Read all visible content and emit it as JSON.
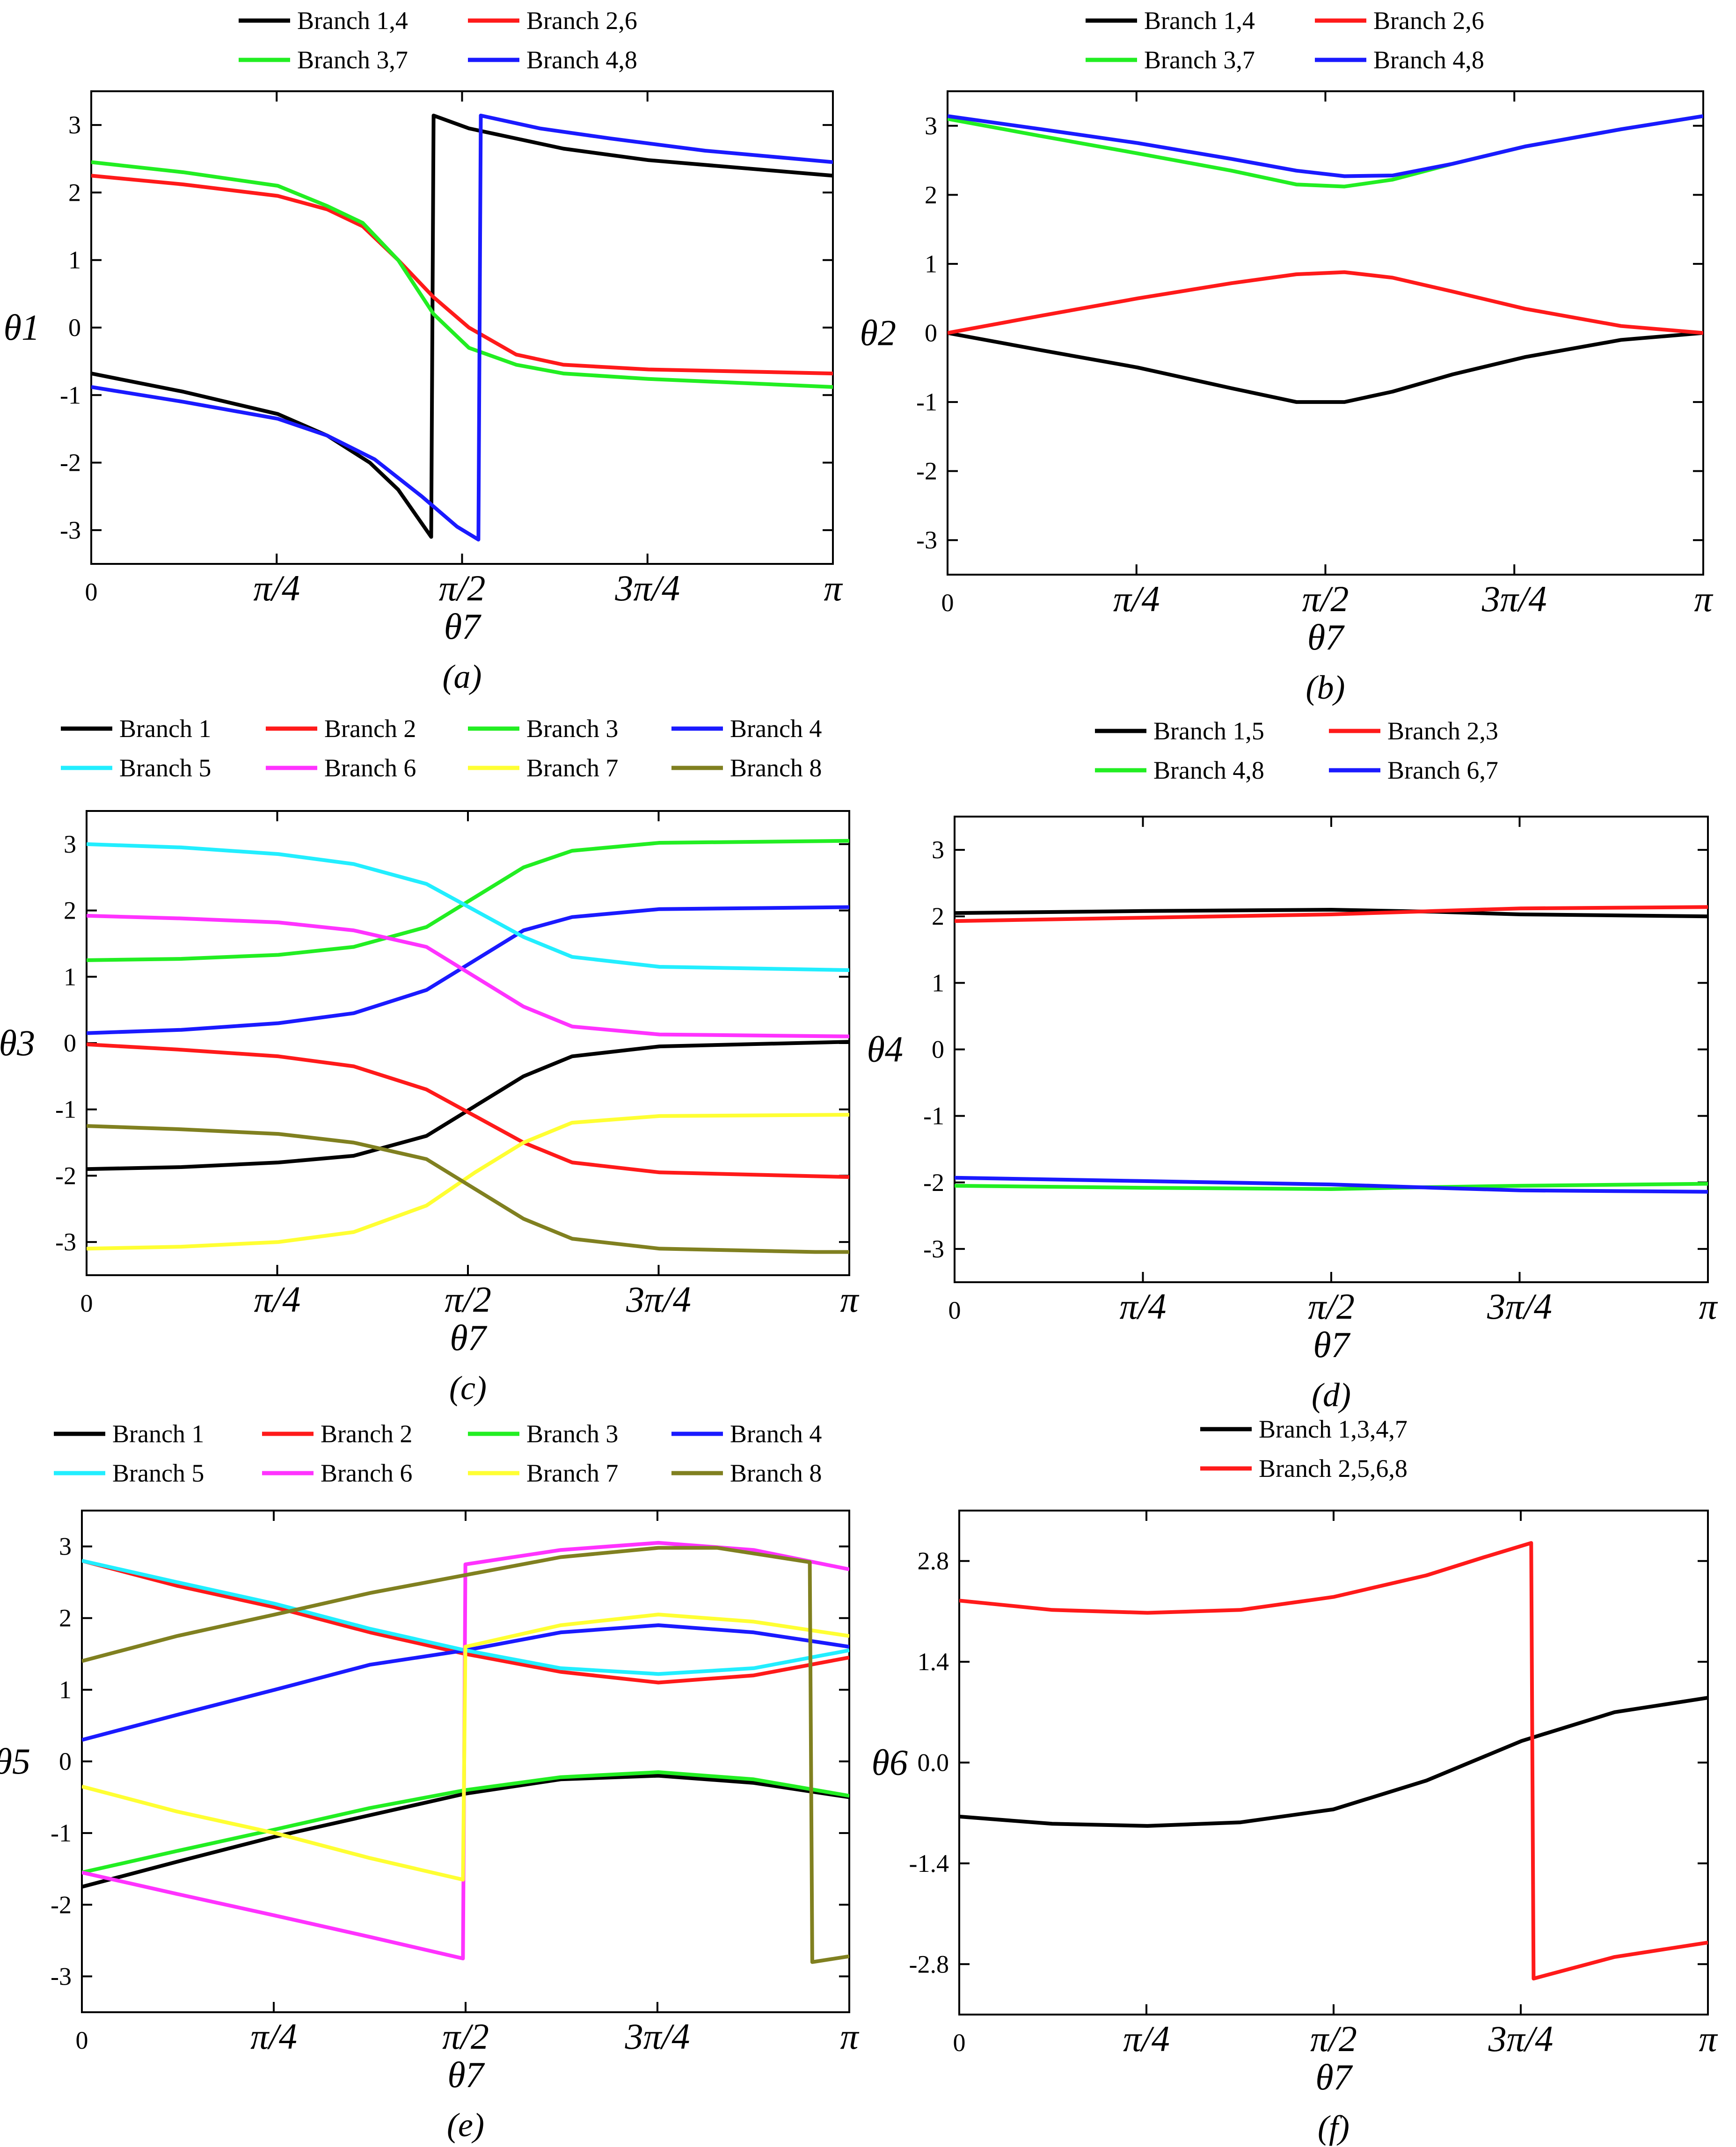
{
  "figure": {
    "colors": {
      "black": "#000000",
      "red": "#ff1a1a",
      "green": "#22ee22",
      "blue": "#1a1aff",
      "cyan": "#22eeff",
      "magenta": "#ff33ff",
      "yellow": "#ffff33",
      "olive": "#808020"
    }
  },
  "chart_data": [
    {
      "id": "a",
      "type": "line",
      "panel_label": "(a)",
      "ylabel": "θ1",
      "xlabel": "θ7",
      "xlim": [
        0,
        3.14159
      ],
      "ylim": [
        -3.5,
        3.5
      ],
      "yticks": [
        "-3",
        "-2",
        "-1",
        "0",
        "1",
        "2",
        "3"
      ],
      "xticks": [
        "0",
        "π/4",
        "π/2",
        "3π/4",
        "π"
      ],
      "series": [
        {
          "name": "Branch 1,4",
          "color": "#000000",
          "x": [
            0,
            0.39,
            0.79,
            1.0,
            1.18,
            1.3,
            1.4,
            1.44,
            1.45,
            1.6,
            1.8,
            2.0,
            2.36,
            3.14159
          ],
          "y": [
            -0.68,
            -0.95,
            -1.28,
            -1.6,
            -2.0,
            -2.4,
            -2.9,
            -3.1,
            3.14,
            2.95,
            2.8,
            2.65,
            2.48,
            2.25
          ]
        },
        {
          "name": "Branch 2,6",
          "color": "#ff1a1a",
          "x": [
            0,
            0.39,
            0.79,
            1.0,
            1.15,
            1.3,
            1.45,
            1.6,
            1.8,
            2.0,
            2.36,
            3.14159
          ],
          "y": [
            2.25,
            2.12,
            1.95,
            1.75,
            1.5,
            1.0,
            0.45,
            0.0,
            -0.4,
            -0.55,
            -0.62,
            -0.68
          ]
        },
        {
          "name": "Branch 3,7",
          "color": "#22ee22",
          "x": [
            0,
            0.39,
            0.79,
            1.0,
            1.15,
            1.3,
            1.45,
            1.6,
            1.8,
            2.0,
            2.36,
            3.14159
          ],
          "y": [
            2.45,
            2.3,
            2.1,
            1.8,
            1.55,
            1.0,
            0.2,
            -0.3,
            -0.55,
            -0.68,
            -0.76,
            -0.88
          ]
        },
        {
          "name": "Branch 4,8",
          "color": "#1a1aff",
          "x": [
            0,
            0.39,
            0.79,
            1.0,
            1.2,
            1.4,
            1.55,
            1.64,
            1.65,
            1.9,
            2.2,
            2.6,
            3.14159
          ],
          "y": [
            -0.88,
            -1.1,
            -1.35,
            -1.6,
            -1.95,
            -2.5,
            -2.95,
            -3.14,
            3.14,
            2.95,
            2.8,
            2.62,
            2.45
          ]
        }
      ],
      "legend": [
        "Branch 1,4",
        "Branch 2,6",
        "Branch 3,7",
        "Branch 4,8"
      ]
    },
    {
      "id": "b",
      "type": "line",
      "panel_label": "(b)",
      "ylabel": "θ2",
      "xlabel": "θ7",
      "xlim": [
        0,
        3.14159
      ],
      "ylim": [
        -3.5,
        3.5
      ],
      "yticks": [
        "-3",
        "-2",
        "-1",
        "0",
        "1",
        "2",
        "3"
      ],
      "xticks": [
        "0",
        "π/4",
        "π/2",
        "3π/4",
        "π"
      ],
      "series": [
        {
          "name": "Branch 1,4",
          "color": "#000000",
          "x": [
            0,
            0.39,
            0.79,
            1.18,
            1.45,
            1.65,
            1.85,
            2.1,
            2.4,
            2.8,
            3.14159
          ],
          "y": [
            0,
            -0.25,
            -0.5,
            -0.8,
            -1.0,
            -1.0,
            -0.85,
            -0.6,
            -0.35,
            -0.1,
            0
          ]
        },
        {
          "name": "Branch 2,6",
          "color": "#ff1a1a",
          "x": [
            0,
            0.39,
            0.79,
            1.18,
            1.45,
            1.65,
            1.85,
            2.1,
            2.4,
            2.8,
            3.14159
          ],
          "y": [
            0,
            0.25,
            0.5,
            0.72,
            0.85,
            0.88,
            0.8,
            0.6,
            0.35,
            0.1,
            0
          ]
        },
        {
          "name": "Branch 3,7",
          "color": "#22ee22",
          "x": [
            0,
            0.39,
            0.79,
            1.18,
            1.45,
            1.65,
            1.85,
            2.1,
            2.4,
            2.8,
            3.14159
          ],
          "y": [
            3.1,
            2.85,
            2.6,
            2.35,
            2.15,
            2.12,
            2.22,
            2.45,
            2.7,
            2.95,
            3.14
          ]
        },
        {
          "name": "Branch 4,8",
          "color": "#1a1aff",
          "x": [
            0,
            0.39,
            0.79,
            1.18,
            1.45,
            1.65,
            1.85,
            2.1,
            2.4,
            2.8,
            3.14159
          ],
          "y": [
            3.14,
            2.95,
            2.75,
            2.52,
            2.35,
            2.27,
            2.28,
            2.45,
            2.7,
            2.95,
            3.14
          ]
        }
      ],
      "legend": [
        "Branch 1,4",
        "Branch 2,6",
        "Branch 3,7",
        "Branch 4,8"
      ]
    },
    {
      "id": "c",
      "type": "line",
      "panel_label": "(c)",
      "ylabel": "θ3",
      "xlabel": "θ7",
      "xlim": [
        0,
        3.14159
      ],
      "ylim": [
        -3.5,
        3.5
      ],
      "yticks": [
        "-3",
        "-2",
        "-1",
        "0",
        "1",
        "2",
        "3"
      ],
      "xticks": [
        "0",
        "π/4",
        "π/2",
        "3π/4",
        "π"
      ],
      "series": [
        {
          "name": "Branch 1",
          "color": "#000000",
          "x": [
            0,
            0.39,
            0.79,
            1.1,
            1.4,
            1.6,
            1.8,
            2.0,
            2.36,
            3.14159
          ],
          "y": [
            -1.9,
            -1.87,
            -1.8,
            -1.7,
            -1.4,
            -0.95,
            -0.5,
            -0.2,
            -0.05,
            0.02
          ]
        },
        {
          "name": "Branch 2",
          "color": "#ff1a1a",
          "x": [
            0,
            0.39,
            0.79,
            1.1,
            1.4,
            1.6,
            1.8,
            2.0,
            2.36,
            3.14159
          ],
          "y": [
            -0.02,
            -0.1,
            -0.2,
            -0.35,
            -0.7,
            -1.1,
            -1.5,
            -1.8,
            -1.95,
            -2.02
          ]
        },
        {
          "name": "Branch 3",
          "color": "#22ee22",
          "x": [
            0,
            0.39,
            0.79,
            1.1,
            1.4,
            1.6,
            1.8,
            2.0,
            2.36,
            3.14159
          ],
          "y": [
            1.25,
            1.27,
            1.33,
            1.45,
            1.75,
            2.2,
            2.65,
            2.9,
            3.02,
            3.05
          ]
        },
        {
          "name": "Branch 4",
          "color": "#1a1aff",
          "x": [
            0,
            0.39,
            0.79,
            1.1,
            1.4,
            1.6,
            1.8,
            2.0,
            2.36,
            3.14159
          ],
          "y": [
            0.15,
            0.2,
            0.3,
            0.45,
            0.8,
            1.25,
            1.7,
            1.9,
            2.02,
            2.05
          ]
        },
        {
          "name": "Branch 5",
          "color": "#22eeff",
          "x": [
            0,
            0.39,
            0.79,
            1.1,
            1.4,
            1.6,
            1.8,
            2.0,
            2.36,
            3.14159
          ],
          "y": [
            3.0,
            2.95,
            2.85,
            2.7,
            2.4,
            2.0,
            1.6,
            1.3,
            1.15,
            1.1
          ]
        },
        {
          "name": "Branch 6",
          "color": "#ff33ff",
          "x": [
            0,
            0.39,
            0.79,
            1.1,
            1.4,
            1.6,
            1.8,
            2.0,
            2.36,
            3.14159
          ],
          "y": [
            1.92,
            1.88,
            1.82,
            1.7,
            1.45,
            1.0,
            0.55,
            0.25,
            0.13,
            0.1
          ]
        },
        {
          "name": "Branch 7",
          "color": "#ffff33",
          "x": [
            0,
            0.39,
            0.79,
            1.1,
            1.4,
            1.6,
            1.8,
            2.0,
            2.36,
            3.14159
          ],
          "y": [
            -3.1,
            -3.07,
            -3.0,
            -2.85,
            -2.45,
            -1.95,
            -1.5,
            -1.2,
            -1.1,
            -1.08
          ]
        },
        {
          "name": "Branch 8",
          "color": "#808020",
          "x": [
            0,
            0.39,
            0.79,
            1.1,
            1.4,
            1.6,
            1.8,
            2.0,
            2.36,
            3.0,
            3.14159
          ],
          "y": [
            -1.25,
            -1.3,
            -1.37,
            -1.5,
            -1.75,
            -2.2,
            -2.65,
            -2.95,
            -3.1,
            -3.15,
            -3.15
          ]
        }
      ],
      "legend": [
        "Branch 1",
        "Branch 2",
        "Branch 3",
        "Branch 4",
        "Branch 5",
        "Branch 6",
        "Branch 7",
        "Branch 8"
      ]
    },
    {
      "id": "d",
      "type": "line",
      "panel_label": "(d)",
      "ylabel": "θ4",
      "xlabel": "θ7",
      "xlim": [
        0,
        3.14159
      ],
      "ylim": [
        -3.5,
        3.5
      ],
      "yticks": [
        "-3",
        "-2",
        "-1",
        "0",
        "1",
        "2",
        "3"
      ],
      "xticks": [
        "0",
        "π/4",
        "π/2",
        "3π/4",
        "π"
      ],
      "series": [
        {
          "name": "Branch 1,5",
          "color": "#000000",
          "x": [
            0,
            0.79,
            1.57,
            2.0,
            2.36,
            3.14159
          ],
          "y": [
            2.05,
            2.08,
            2.1,
            2.07,
            2.03,
            2.0
          ]
        },
        {
          "name": "Branch 2,3",
          "color": "#ff1a1a",
          "x": [
            0,
            0.79,
            1.57,
            2.0,
            2.36,
            3.14159
          ],
          "y": [
            1.93,
            1.98,
            2.03,
            2.08,
            2.12,
            2.14
          ]
        },
        {
          "name": "Branch 4,8",
          "color": "#22ee22",
          "x": [
            0,
            0.79,
            1.57,
            2.0,
            2.36,
            3.14159
          ],
          "y": [
            -2.05,
            -2.08,
            -2.1,
            -2.07,
            -2.05,
            -2.02
          ]
        },
        {
          "name": "Branch 6,7",
          "color": "#1a1aff",
          "x": [
            0,
            0.79,
            1.57,
            2.0,
            2.36,
            3.14159
          ],
          "y": [
            -1.93,
            -1.98,
            -2.03,
            -2.08,
            -2.12,
            -2.14
          ]
        }
      ],
      "legend": [
        "Branch 1,5",
        "Branch 2,3",
        "Branch 4,8",
        "Branch 6,7"
      ]
    },
    {
      "id": "e",
      "type": "line",
      "panel_label": "(e)",
      "ylabel": "θ5",
      "xlabel": "θ7",
      "xlim": [
        0,
        3.14159
      ],
      "ylim": [
        -3.5,
        3.5
      ],
      "yticks": [
        "-3",
        "-2",
        "-1",
        "0",
        "1",
        "2",
        "3"
      ],
      "xticks": [
        "0",
        "π/4",
        "π/2",
        "3π/4",
        "π"
      ],
      "series": [
        {
          "name": "Branch 1",
          "color": "#000000",
          "x": [
            0,
            0.39,
            0.79,
            1.18,
            1.57,
            1.96,
            2.36,
            2.75,
            3.14159
          ],
          "y": [
            -1.75,
            -1.4,
            -1.05,
            -0.75,
            -0.45,
            -0.25,
            -0.2,
            -0.3,
            -0.5
          ]
        },
        {
          "name": "Branch 2",
          "color": "#ff1a1a",
          "x": [
            0,
            0.39,
            0.79,
            1.18,
            1.57,
            1.96,
            2.36,
            2.75,
            3.14159
          ],
          "y": [
            2.8,
            2.45,
            2.15,
            1.8,
            1.5,
            1.25,
            1.1,
            1.2,
            1.45
          ]
        },
        {
          "name": "Branch 3",
          "color": "#22ee22",
          "x": [
            0,
            0.39,
            0.79,
            1.18,
            1.57,
            1.96,
            2.36,
            2.75,
            3.14159
          ],
          "y": [
            -1.55,
            -1.25,
            -0.95,
            -0.65,
            -0.4,
            -0.22,
            -0.15,
            -0.25,
            -0.48
          ]
        },
        {
          "name": "Branch 4",
          "color": "#1a1aff",
          "x": [
            0,
            0.39,
            0.79,
            1.18,
            1.57,
            1.96,
            2.36,
            2.75,
            3.14159
          ],
          "y": [
            0.3,
            0.65,
            1.0,
            1.35,
            1.55,
            1.8,
            1.9,
            1.8,
            1.6
          ]
        },
        {
          "name": "Branch 5",
          "color": "#22eeff",
          "x": [
            0,
            0.39,
            0.79,
            1.18,
            1.57,
            1.96,
            2.36,
            2.75,
            3.14159
          ],
          "y": [
            2.8,
            2.5,
            2.2,
            1.85,
            1.55,
            1.3,
            1.22,
            1.3,
            1.55
          ]
        },
        {
          "name": "Branch 6",
          "color": "#ff33ff",
          "x": [
            0,
            0.39,
            0.79,
            1.18,
            1.56,
            1.57,
            1.96,
            2.36,
            2.75,
            3.14159
          ],
          "y": [
            -1.55,
            -1.85,
            -2.15,
            -2.45,
            -2.75,
            2.75,
            2.95,
            3.05,
            2.95,
            2.68
          ]
        },
        {
          "name": "Branch 7",
          "color": "#ffff33",
          "x": [
            0,
            0.39,
            0.79,
            1.18,
            1.56,
            1.57,
            1.96,
            2.36,
            2.75,
            3.14159
          ],
          "y": [
            -0.35,
            -0.7,
            -1.0,
            -1.35,
            -1.65,
            1.6,
            1.9,
            2.05,
            1.95,
            1.75
          ]
        },
        {
          "name": "Branch 8",
          "color": "#808020",
          "x": [
            0,
            0.39,
            0.79,
            1.18,
            1.57,
            1.96,
            2.36,
            2.6,
            2.98,
            2.99,
            3.14159
          ],
          "y": [
            1.4,
            1.75,
            2.05,
            2.35,
            2.6,
            2.85,
            2.98,
            2.98,
            2.78,
            -2.8,
            -2.72
          ]
        }
      ],
      "legend": [
        "Branch 1",
        "Branch 2",
        "Branch 3",
        "Branch 4",
        "Branch 5",
        "Branch 6",
        "Branch 7",
        "Branch 8"
      ]
    },
    {
      "id": "f",
      "type": "line",
      "panel_label": "(f)",
      "ylabel": "θ6",
      "xlabel": "θ7",
      "xlim": [
        0,
        3.14159
      ],
      "ylim": [
        -3.5,
        3.5
      ],
      "yticks": [
        "-2.8",
        "-1.4",
        "0.0",
        "1.4",
        "2.8"
      ],
      "ytick_values": [
        -2.8,
        -1.4,
        0,
        1.4,
        2.8
      ],
      "xticks": [
        "0",
        "π/4",
        "π/2",
        "3π/4",
        "π"
      ],
      "series": [
        {
          "name": "Branch 1,3,4,7",
          "color": "#000000",
          "x": [
            0,
            0.39,
            0.79,
            1.18,
            1.57,
            1.96,
            2.36,
            2.75,
            3.14159
          ],
          "y": [
            -0.75,
            -0.85,
            -0.88,
            -0.83,
            -0.65,
            -0.25,
            0.3,
            0.7,
            0.9
          ]
        },
        {
          "name": "Branch 2,5,6,8",
          "color": "#ff1a1a",
          "x": [
            0,
            0.39,
            0.79,
            1.18,
            1.57,
            1.96,
            2.2,
            2.4,
            2.41,
            2.75,
            3.14159
          ],
          "y": [
            2.25,
            2.12,
            2.08,
            2.12,
            2.3,
            2.6,
            2.85,
            3.05,
            -3.0,
            -2.7,
            -2.5
          ]
        }
      ],
      "legend": [
        "Branch 1,3,4,7",
        "Branch 2,5,6,8"
      ]
    }
  ]
}
